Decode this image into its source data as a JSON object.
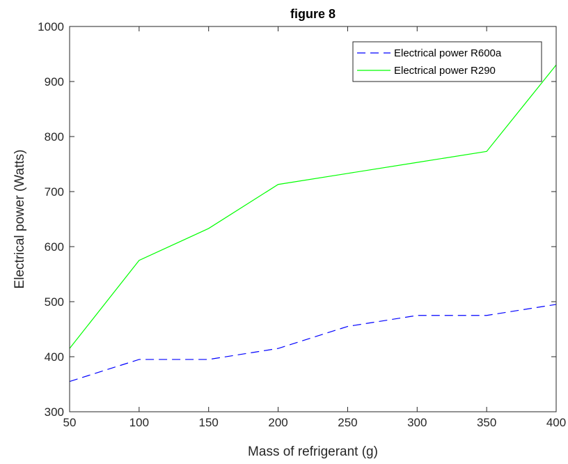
{
  "chart_data": {
    "type": "line",
    "title": "figure 8",
    "xlabel": "Mass of refrigerant (g)",
    "ylabel": "Electrical power (Watts)",
    "xlim": [
      50,
      400
    ],
    "ylim": [
      300,
      1000
    ],
    "xticks": [
      50,
      100,
      150,
      200,
      250,
      300,
      350,
      400
    ],
    "yticks": [
      300,
      400,
      500,
      600,
      700,
      800,
      900,
      1000
    ],
    "xtick_labels": [
      "50",
      "100",
      "150",
      "200",
      "250",
      "300",
      "350",
      "400"
    ],
    "ytick_labels": [
      "300",
      "400",
      "500",
      "600",
      "700",
      "800",
      "900",
      "1000"
    ],
    "x": [
      50,
      100,
      150,
      200,
      250,
      300,
      350,
      400
    ],
    "grid": false,
    "legend_position": "top-right",
    "series": [
      {
        "name": "Electrical power R600a",
        "values": [
          355,
          395,
          395,
          415,
          455,
          475,
          475,
          495
        ],
        "color": "#0000ff",
        "style": "dashed"
      },
      {
        "name": "Electrical power R290",
        "values": [
          415,
          575,
          633,
          713,
          733,
          753,
          773,
          930
        ],
        "color": "#00ff00",
        "style": "solid"
      }
    ]
  }
}
